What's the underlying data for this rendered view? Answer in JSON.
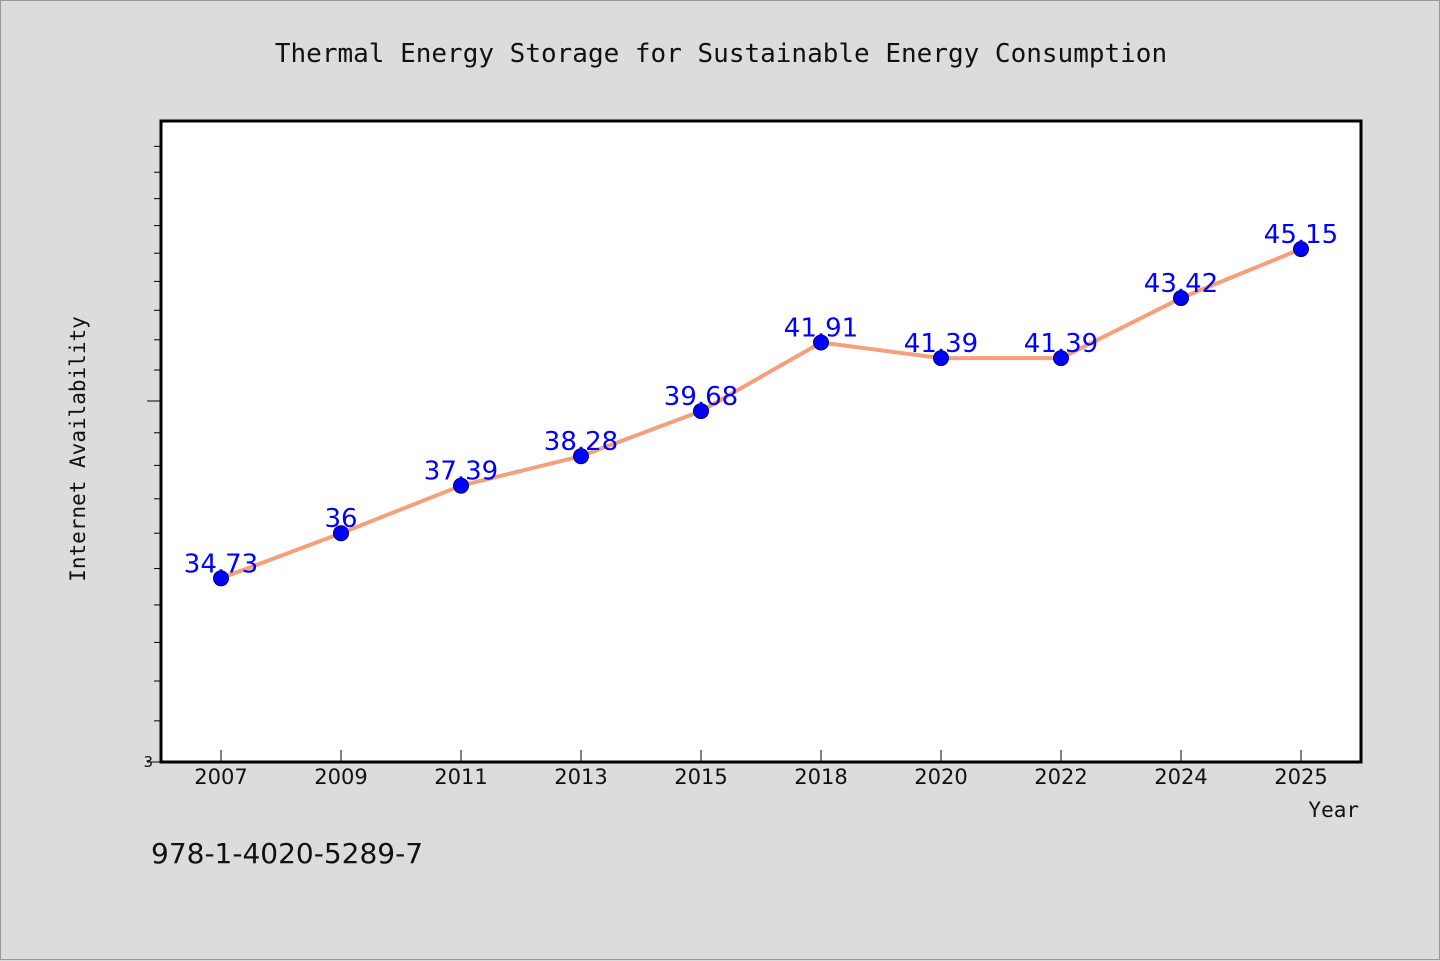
{
  "chart_data": {
    "type": "line",
    "title": "Thermal Energy Storage for Sustainable Energy Consumption",
    "xlabel": "Year",
    "ylabel": "Internet Availability",
    "categories": [
      "2007",
      "2009",
      "2011",
      "2013",
      "2015",
      "2018",
      "2020",
      "2022",
      "2024",
      "2025"
    ],
    "series": [
      {
        "values": [
          34.73,
          36,
          37.39,
          38.28,
          39.68,
          41.91,
          41.39,
          41.39,
          43.42,
          45.15
        ],
        "labels": [
          "34.73",
          "36",
          "37.39",
          "38.28",
          "39.68",
          "41.91",
          "41.39",
          "41.39",
          "43.42",
          "45.15"
        ]
      }
    ],
    "y_scale": "log",
    "ylim": [
      30,
      50
    ],
    "ytick_labels": [
      "3"
    ],
    "grid": false,
    "colors": {
      "line": "#f4a07c",
      "marker": "#0000ff",
      "label": "#0000ff"
    }
  },
  "footer": {
    "isbn": "978-1-4020-5289-7"
  }
}
